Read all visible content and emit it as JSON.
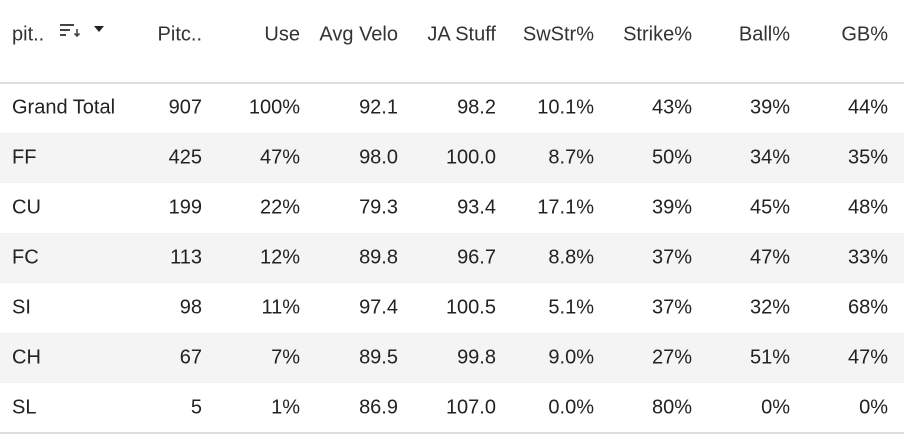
{
  "table": {
    "headers": [
      "pit..",
      "Pitc..",
      "Use",
      "Avg Velo",
      "JA Stuff",
      "SwStr%",
      "Strike%",
      "Ball%",
      "GB%"
    ],
    "rows": [
      [
        "Grand Total",
        "907",
        "100%",
        "92.1",
        "98.2",
        "10.1%",
        "43%",
        "39%",
        "44%"
      ],
      [
        "FF",
        "425",
        "47%",
        "98.0",
        "100.0",
        "8.7%",
        "50%",
        "34%",
        "35%"
      ],
      [
        "CU",
        "199",
        "22%",
        "79.3",
        "93.4",
        "17.1%",
        "39%",
        "45%",
        "48%"
      ],
      [
        "FC",
        "113",
        "12%",
        "89.8",
        "96.7",
        "8.8%",
        "37%",
        "47%",
        "33%"
      ],
      [
        "SI",
        "98",
        "11%",
        "97.4",
        "100.5",
        "5.1%",
        "37%",
        "32%",
        "68%"
      ],
      [
        "CH",
        "67",
        "7%",
        "89.5",
        "99.8",
        "9.0%",
        "27%",
        "51%",
        "47%"
      ],
      [
        "SL",
        "5",
        "1%",
        "86.9",
        "107.0",
        "0.0%",
        "80%",
        "0%",
        "0%"
      ]
    ]
  }
}
